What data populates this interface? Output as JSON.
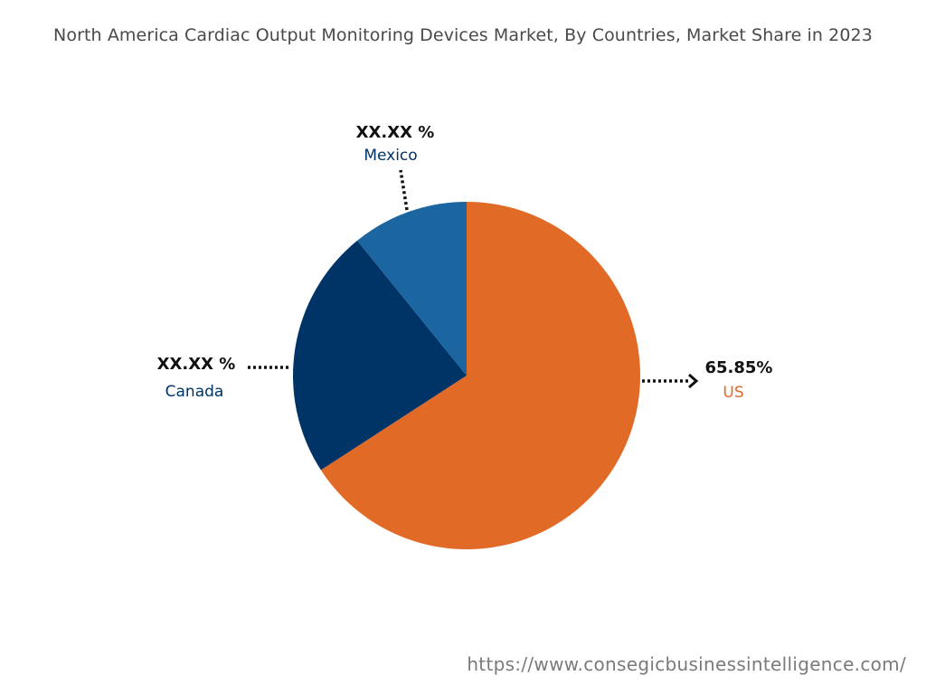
{
  "chart_data": {
    "type": "pie",
    "title": "North America Cardiac Output Monitoring Devices Market, By Countries, Market Share in 2023",
    "slices": [
      {
        "name": "US",
        "value_label": "65.85%",
        "share": 65.85,
        "color": "#e26a27",
        "label_color": "#e26a27"
      },
      {
        "name": "Canada",
        "value_label": "XX.XX %",
        "share": 23.3,
        "color": "#003366",
        "label_color": "#003366"
      },
      {
        "name": "Mexico",
        "value_label": "XX.XX %",
        "share": 10.85,
        "color": "#1b65a0",
        "label_color": "#003366"
      }
    ],
    "start": "12 o'clock",
    "direction": "clockwise"
  },
  "footer": {
    "url": "https://www.consegicbusinessintelligence.com/"
  }
}
